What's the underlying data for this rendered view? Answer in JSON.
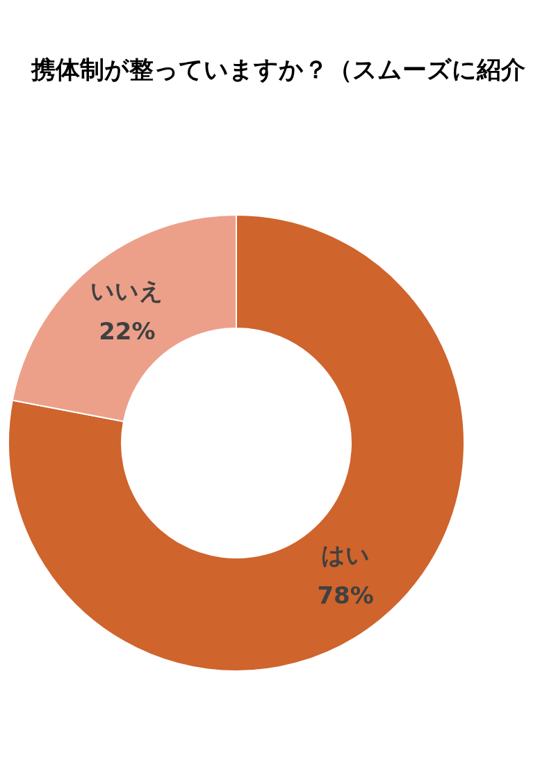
{
  "chart_data": {
    "type": "donut",
    "title": "携体制が整っていますか？（スムーズに紹介",
    "categories": [
      "はい",
      "いいえ"
    ],
    "values": [
      78,
      22
    ],
    "colors": [
      "#cf642c",
      "#eca08a"
    ],
    "value_labels": [
      "78%",
      "22%"
    ]
  }
}
